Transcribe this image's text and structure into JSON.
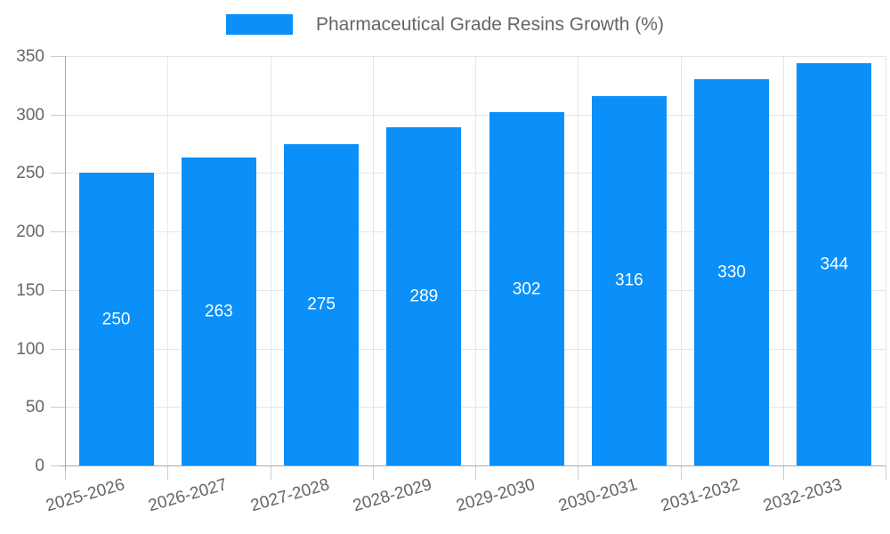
{
  "chart_data": {
    "type": "bar",
    "title": "Pharmaceutical Grade Resins Growth (%)",
    "legend": {
      "label": "Pharmaceutical Grade Resins Growth (%)",
      "position": "top"
    },
    "categories": [
      "2025-2026",
      "2026-2027",
      "2027-2028",
      "2028-2029",
      "2029-2030",
      "2030-2031",
      "2031-2032",
      "2032-2033"
    ],
    "values": [
      250,
      263,
      275,
      289,
      302,
      316,
      330,
      344
    ],
    "value_labels_inside_bars": true,
    "xlabel": "",
    "ylabel": "",
    "ylim": [
      0,
      350
    ],
    "yticks": [
      0,
      50,
      100,
      150,
      200,
      250,
      300,
      350
    ],
    "grid": true,
    "x_label_rotation_deg": -16,
    "colors": {
      "bar": "#0a90f8",
      "axis_text": "#666666",
      "axis_line": "#a8a8a8",
      "gridline": "#e6e6e6",
      "tick": "#cccccc",
      "value_label": "#ffffff",
      "background": "#ffffff"
    }
  }
}
